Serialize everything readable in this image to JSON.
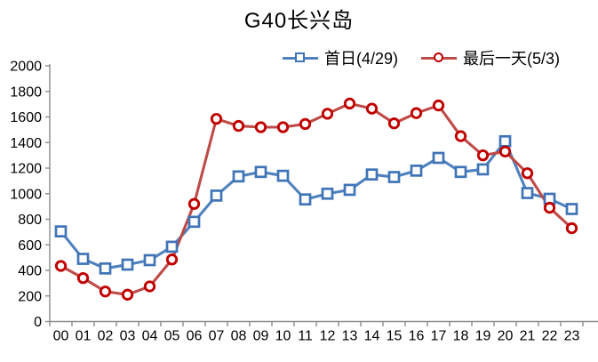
{
  "chart_data": {
    "type": "line",
    "title": "G40长兴岛",
    "legend_position": "top",
    "grid": false,
    "x_categories": [
      "00",
      "01",
      "02",
      "03",
      "04",
      "05",
      "06",
      "07",
      "08",
      "09",
      "10",
      "11",
      "12",
      "13",
      "14",
      "15",
      "16",
      "17",
      "18",
      "19",
      "20",
      "21",
      "22",
      "23"
    ],
    "ylim": [
      0,
      2000
    ],
    "ytick_step": 200,
    "y_tick_labels": [
      "0",
      "200",
      "400",
      "600",
      "800",
      "1000",
      "1200",
      "1400",
      "1600",
      "1800",
      "2000"
    ],
    "axis_color": "#8C8C8C",
    "text_color": "#000000",
    "series": [
      {
        "name": "首日(4/29)",
        "slug": "first-day",
        "marker": "square",
        "color": "#4F81BD",
        "marker_color": "#3F74B6",
        "values": [
          705,
          490,
          415,
          445,
          480,
          585,
          780,
          985,
          1135,
          1170,
          1140,
          955,
          1000,
          1030,
          1150,
          1130,
          1180,
          1280,
          1170,
          1190,
          1410,
          1005,
          960,
          880
        ]
      },
      {
        "name": "最后一天(5/3)",
        "slug": "last-day",
        "marker": "circle",
        "color": "#BE4B48",
        "marker_color": "#C00000",
        "values": [
          435,
          340,
          235,
          210,
          275,
          485,
          920,
          1585,
          1530,
          1520,
          1520,
          1545,
          1625,
          1705,
          1665,
          1550,
          1630,
          1690,
          1450,
          1300,
          1330,
          1160,
          890,
          730
        ]
      }
    ]
  }
}
